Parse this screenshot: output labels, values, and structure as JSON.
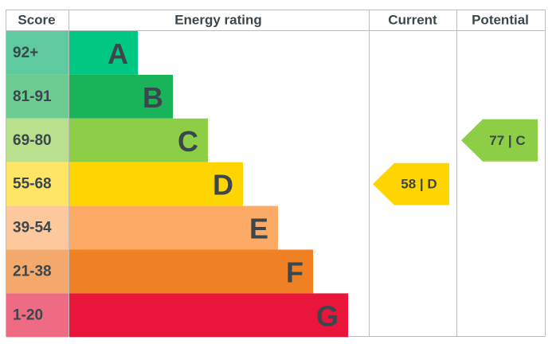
{
  "headers": [
    "Score",
    "Energy rating",
    "Current",
    "Potential"
  ],
  "bands": [
    {
      "score": "92+",
      "rating": "A",
      "color": "#00c781",
      "score_color": "#5fcaa0"
    },
    {
      "score": "81-91",
      "rating": "B",
      "color": "#19b459",
      "score_color": "#6dcc8f"
    },
    {
      "score": "69-80",
      "rating": "C",
      "color": "#8dce46",
      "score_color": "#b9e08c"
    },
    {
      "score": "55-68",
      "rating": "D",
      "color": "#ffd500",
      "score_color": "#ffe566"
    },
    {
      "score": "39-54",
      "rating": "E",
      "color": "#fcaa65",
      "score_color": "#fdc89c"
    },
    {
      "score": "21-38",
      "rating": "F",
      "color": "#ef8023",
      "score_color": "#f4a96c"
    },
    {
      "score": "1-20",
      "rating": "G",
      "color": "#e9153b",
      "score_color": "#ef6b84"
    }
  ],
  "current": "58 | D",
  "potential": "77 | C"
}
